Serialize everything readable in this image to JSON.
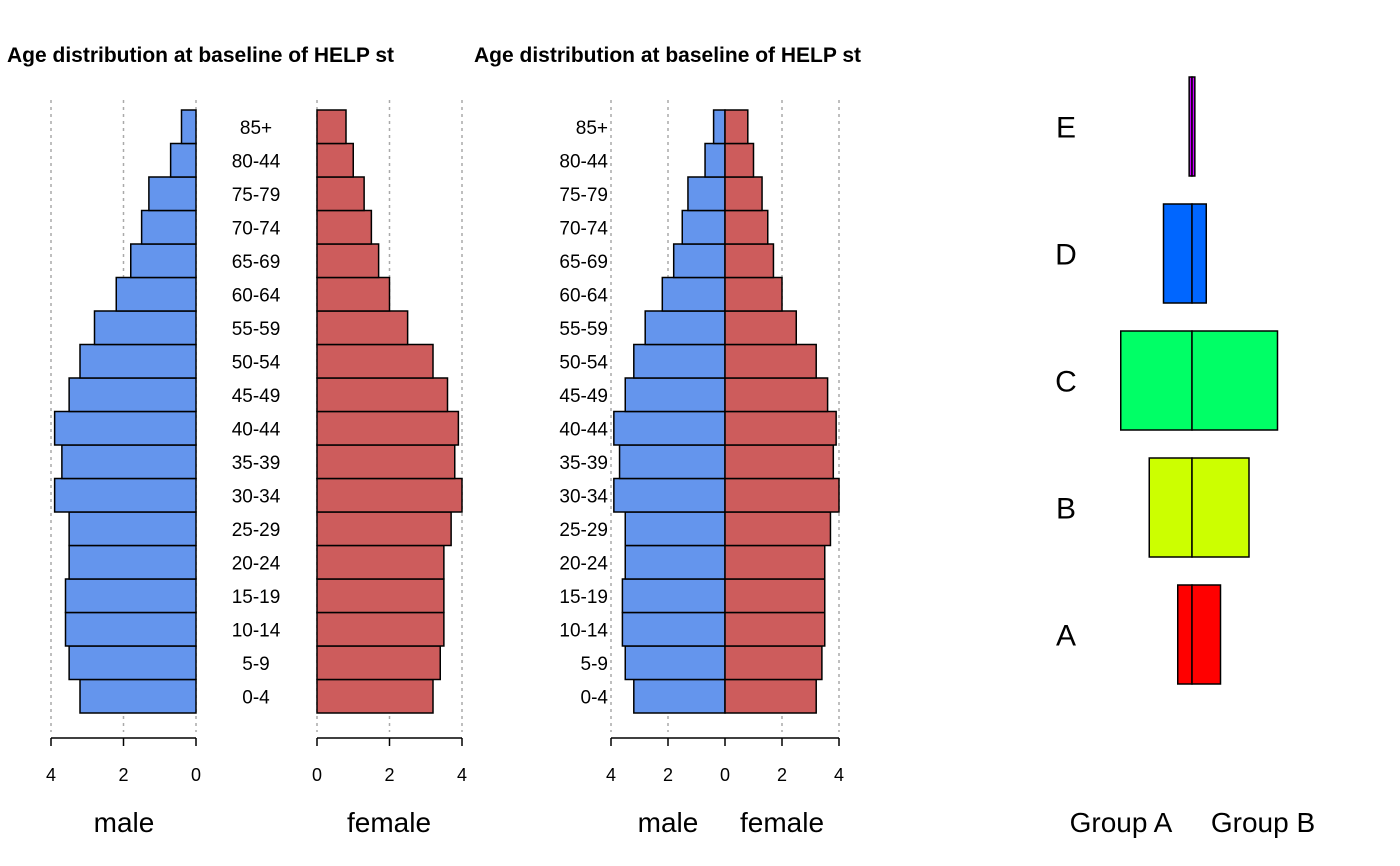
{
  "colors": {
    "male": "#6495ED",
    "female": "#CD5C5C"
  },
  "chart_data": [
    {
      "type": "bar",
      "subtype": "population-pyramid",
      "title": "Age distribution at baseline of HELP st",
      "categories": [
        "0-4",
        "5-9",
        "10-14",
        "15-19",
        "20-24",
        "25-29",
        "30-34",
        "35-39",
        "40-44",
        "45-49",
        "50-54",
        "55-59",
        "60-64",
        "65-69",
        "70-74",
        "75-79",
        "80-44",
        "85+"
      ],
      "series": [
        {
          "name": "male",
          "values": [
            3.2,
            3.5,
            3.6,
            3.6,
            3.5,
            3.5,
            3.9,
            3.7,
            3.9,
            3.5,
            3.2,
            2.8,
            2.2,
            1.8,
            1.5,
            1.3,
            0.7,
            0.4
          ]
        },
        {
          "name": "female",
          "values": [
            3.2,
            3.4,
            3.5,
            3.5,
            3.5,
            3.7,
            4.0,
            3.8,
            3.9,
            3.6,
            3.2,
            2.5,
            2.0,
            1.7,
            1.5,
            1.3,
            1.0,
            0.8
          ]
        }
      ],
      "xlabels": [
        "male",
        "female"
      ],
      "xticks": [
        0,
        2,
        4
      ],
      "xlim": [
        0,
        4
      ],
      "grid": "dotted-vertical",
      "layout": "split"
    },
    {
      "type": "bar",
      "subtype": "population-pyramid",
      "title": "Age distribution at baseline of HELP st",
      "categories": [
        "0-4",
        "5-9",
        "10-14",
        "15-19",
        "20-24",
        "25-29",
        "30-34",
        "35-39",
        "40-44",
        "45-49",
        "50-54",
        "55-59",
        "60-64",
        "65-69",
        "70-74",
        "75-79",
        "80-44",
        "85+"
      ],
      "series": [
        {
          "name": "male",
          "values": [
            3.2,
            3.5,
            3.6,
            3.6,
            3.5,
            3.5,
            3.9,
            3.7,
            3.9,
            3.5,
            3.2,
            2.8,
            2.2,
            1.8,
            1.5,
            1.3,
            0.7,
            0.4
          ]
        },
        {
          "name": "female",
          "values": [
            3.2,
            3.4,
            3.5,
            3.5,
            3.5,
            3.7,
            4.0,
            3.8,
            3.9,
            3.6,
            3.2,
            2.5,
            2.0,
            1.7,
            1.5,
            1.3,
            1.0,
            0.8
          ]
        }
      ],
      "xlabels": [
        "male",
        "female"
      ],
      "xticks": [
        4,
        2,
        0,
        2,
        4
      ],
      "xlim": [
        -4,
        4
      ],
      "grid": "dotted-vertical",
      "layout": "centered"
    },
    {
      "type": "bar",
      "subtype": "pyramid",
      "title": "",
      "categories": [
        "A",
        "B",
        "C",
        "D",
        "E"
      ],
      "series": [
        {
          "name": "Group A",
          "values": [
            0.5,
            1.5,
            2.5,
            1.0,
            0.1
          ]
        },
        {
          "name": "Group B",
          "values": [
            1.0,
            2.0,
            3.0,
            0.5,
            0.1
          ]
        }
      ],
      "colors": [
        "#FF0000",
        "#CCFF00",
        "#00FF66",
        "#0066FF",
        "#CC00FF"
      ],
      "xlabels": [
        "Group A",
        "Group B"
      ],
      "axes": "none"
    }
  ]
}
